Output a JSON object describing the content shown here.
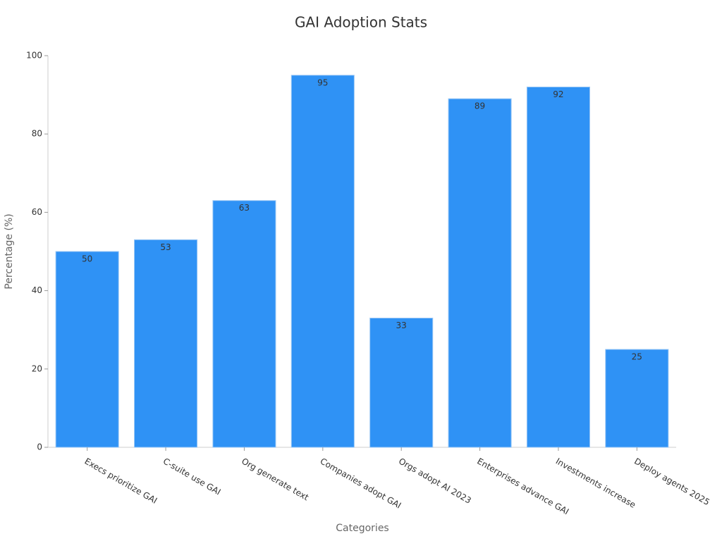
{
  "chart_data": {
    "type": "bar",
    "title": "GAI Adoption Stats",
    "x_label": "Categories",
    "y_label": "Percentage (%)",
    "categories": [
      "Execs prioritize GAI",
      "C-suite use GAI",
      "Org generate text",
      "Companies adopt GAI",
      "Orgs adopt AI 2023",
      "Enterprises advance GAI",
      "Investments increase",
      "Deploy agents 2025"
    ],
    "values": [
      50,
      53,
      63,
      95,
      33,
      89,
      92,
      25
    ],
    "color": "#2f92f5",
    "ylim": [
      0,
      100
    ],
    "yticks": [
      0,
      20,
      40,
      60,
      80,
      100
    ],
    "grid": false,
    "value_labels_shown": true
  }
}
